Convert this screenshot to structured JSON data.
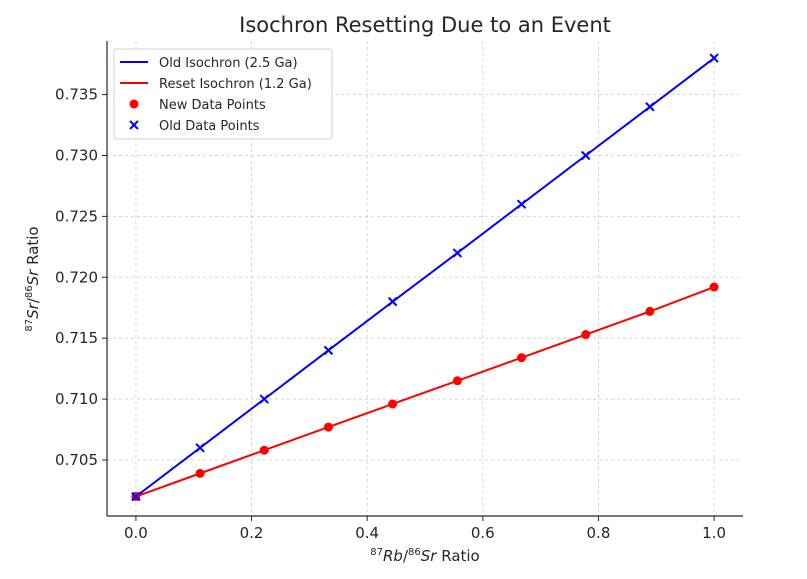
{
  "chart_data": {
    "type": "line",
    "title": "Isochron Resetting Due to an Event",
    "xlabel": "⁸⁷Rb/⁸⁶Sr Ratio",
    "ylabel": "⁸⁷Sr/⁸⁶Sr Ratio",
    "xlim": [
      -0.05,
      1.05
    ],
    "ylim": [
      0.7004,
      0.7394
    ],
    "xticks": [
      0.0,
      0.2,
      0.4,
      0.6,
      0.8,
      1.0
    ],
    "xtick_labels": [
      "0.0",
      "0.2",
      "0.4",
      "0.6",
      "0.8",
      "1.0"
    ],
    "yticks": [
      0.705,
      0.71,
      0.715,
      0.72,
      0.725,
      0.73,
      0.735
    ],
    "ytick_labels": [
      "0.705",
      "0.710",
      "0.715",
      "0.720",
      "0.725",
      "0.730",
      "0.735"
    ],
    "grid": true,
    "legend_position": "top-left",
    "x": [
      0.0,
      0.111,
      0.222,
      0.333,
      0.444,
      0.556,
      0.667,
      0.778,
      0.889,
      1.0
    ],
    "series": [
      {
        "name": "Old Isochron (2.5 Ga)",
        "kind": "line",
        "color": "#0000ff",
        "values": [
          0.702,
          0.706,
          0.71,
          0.714,
          0.718,
          0.722,
          0.726,
          0.73,
          0.734,
          0.738
        ]
      },
      {
        "name": "Reset Isochron (1.2 Ga)",
        "kind": "line",
        "color": "#ff0000",
        "values": [
          0.702,
          0.7039,
          0.7058,
          0.7077,
          0.7096,
          0.7115,
          0.7134,
          0.7153,
          0.7172,
          0.7192
        ]
      },
      {
        "name": "New Data Points",
        "kind": "scatter",
        "marker": "circle",
        "color": "#ff0000",
        "values": [
          0.702,
          0.7039,
          0.7058,
          0.7077,
          0.7096,
          0.7115,
          0.7134,
          0.7153,
          0.7172,
          0.7192
        ]
      },
      {
        "name": "Old Data Points",
        "kind": "scatter",
        "marker": "x",
        "color": "#0000ff",
        "values": [
          0.702,
          0.706,
          0.71,
          0.714,
          0.718,
          0.722,
          0.726,
          0.73,
          0.734,
          0.738
        ]
      }
    ]
  }
}
